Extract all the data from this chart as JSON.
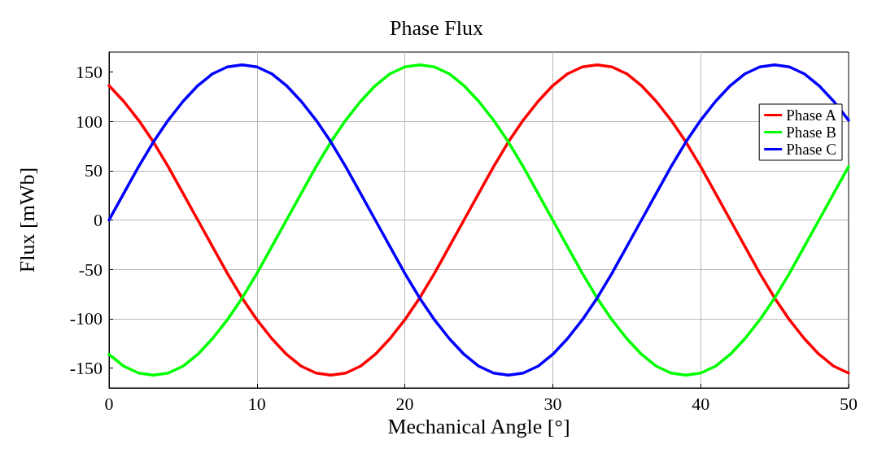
{
  "chart_data": {
    "type": "line",
    "title": "Phase Flux",
    "xlabel": "Mechanical Angle [°]",
    "ylabel": "Flux [mWb]",
    "x": [
      0,
      1,
      2,
      3,
      4,
      5,
      6,
      7,
      8,
      9,
      10,
      11,
      12,
      13,
      14,
      15,
      16,
      17,
      18,
      19,
      20,
      21,
      22,
      23,
      24,
      25,
      26,
      27,
      28,
      29,
      30,
      31,
      32,
      33,
      34,
      35,
      36,
      37,
      38,
      39,
      40,
      41,
      42,
      43,
      44,
      45,
      46,
      47,
      48,
      49,
      50
    ],
    "series": [
      {
        "name": "Phase A",
        "color": "#ff0000",
        "values": [
          136,
          120,
          101,
          79,
          54,
          27,
          0,
          -27,
          -54,
          -79,
          -101,
          -120,
          -136,
          -148,
          -155,
          -157,
          -155,
          -148,
          -136,
          -120,
          -101,
          -79,
          -54,
          -27,
          0,
          27,
          54,
          79,
          101,
          120,
          136,
          148,
          155,
          157,
          155,
          148,
          136,
          120,
          101,
          79,
          54,
          27,
          0,
          -27,
          -54,
          -79,
          -101,
          -120,
          -136,
          -148,
          -155
        ]
      },
      {
        "name": "Phase B",
        "color": "#00ff00",
        "values": [
          -136,
          -148,
          -155,
          -157,
          -155,
          -148,
          -136,
          -120,
          -101,
          -79,
          -54,
          -27,
          0,
          27,
          54,
          79,
          101,
          120,
          136,
          148,
          155,
          157,
          155,
          148,
          136,
          120,
          101,
          79,
          54,
          27,
          0,
          -27,
          -54,
          -79,
          -101,
          -120,
          -136,
          -148,
          -155,
          -157,
          -155,
          -148,
          -136,
          -120,
          -101,
          -79,
          -54,
          -27,
          0,
          27,
          54
        ]
      },
      {
        "name": "Phase C",
        "color": "#0000ff",
        "values": [
          0,
          27,
          54,
          79,
          101,
          120,
          136,
          148,
          155,
          157,
          155,
          148,
          136,
          120,
          101,
          79,
          54,
          27,
          0,
          -27,
          -54,
          -79,
          -101,
          -120,
          -136,
          -148,
          -155,
          -157,
          -155,
          -148,
          -136,
          -120,
          -101,
          -79,
          -54,
          -27,
          0,
          27,
          54,
          79,
          101,
          120,
          136,
          148,
          155,
          157,
          155,
          148,
          136,
          120,
          101
        ]
      }
    ],
    "xlim": [
      0,
      50
    ],
    "xticks": [
      0,
      10,
      20,
      30,
      40,
      50
    ],
    "ylim": [
      -170,
      170
    ],
    "yticks": [
      -150,
      -100,
      -50,
      0,
      50,
      100,
      150
    ],
    "grid": true,
    "legend": "top right",
    "marker": "none",
    "line_style": "solid"
  }
}
